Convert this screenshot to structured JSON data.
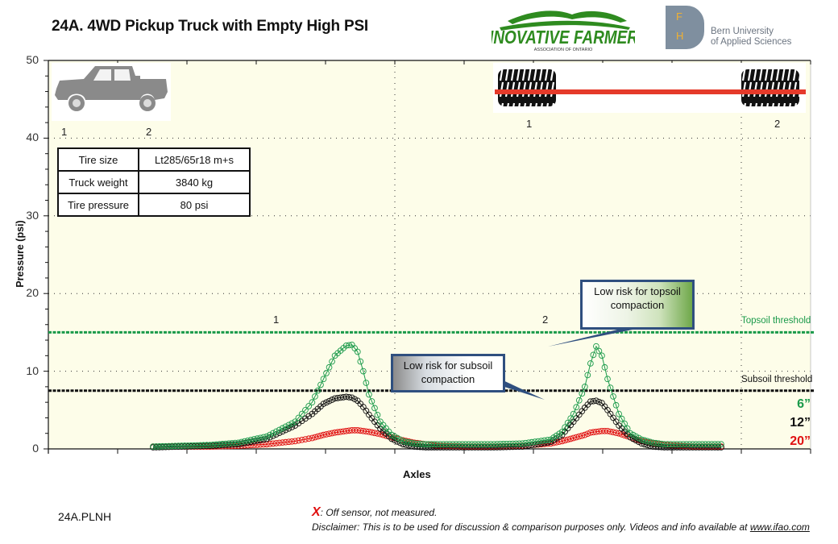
{
  "header": {
    "title": "24A. 4WD Pickup Truck with Empty High PSI",
    "logo_left": {
      "name": "INNOVATIVE FARMERS",
      "subtitle": "ASSOCIATION OF ONTARIO",
      "color": "#2e8b1f"
    },
    "logo_right": {
      "letters": [
        "F",
        "H"
      ],
      "line1": "Bern University",
      "line2": "of Applied Sciences",
      "block_color": "#7f8f9f",
      "letter_color": "#f0b030"
    }
  },
  "vehicle_info": {
    "rows": [
      {
        "label": "Tire size",
        "value": "Lt285/65r18 m+s"
      },
      {
        "label": "Truck weight",
        "value": "3840 kg"
      },
      {
        "label": "Tire pressure",
        "value": "80 psi"
      }
    ]
  },
  "truck_icon": {
    "name": "pickup-truck-icon",
    "axle_labels": [
      "1",
      "2"
    ],
    "color": "#8a8a8a"
  },
  "tire_diagram": {
    "axle_labels": [
      "1",
      "2"
    ],
    "axle_color": "#e53a2a"
  },
  "annotations": {
    "topsoil_callout": "Low risk for topsoil compaction",
    "subsoil_callout": "Low risk for subsoil compaction",
    "topsoil_threshold_label": "Topsoil threshold",
    "subsoil_threshold_label": "Subsoil threshold",
    "peak_labels": [
      "1",
      "2"
    ]
  },
  "legend": [
    {
      "label": "6”",
      "color": "#1a9a4a"
    },
    {
      "label": "12”",
      "color": "#111111"
    },
    {
      "label": "20”",
      "color": "#e01010"
    }
  ],
  "footer": {
    "id": "24A.PLNH",
    "off_sensor_mark": "X",
    "off_sensor_text": ": Off sensor, not measured.",
    "disclaimer": "Disclaimer: This is to be used for discussion & comparison purposes only. Videos and info available at ",
    "link": "www.ifao.com"
  },
  "chart_data": {
    "type": "line",
    "title": "24A. 4WD Pickup Truck with Empty High PSI",
    "xlabel": "Axles",
    "ylabel": "Pressure (psi)",
    "ylim": [
      0,
      50
    ],
    "yticks": [
      0,
      10,
      20,
      30,
      40,
      50
    ],
    "grid": true,
    "legend_position": "right-bottom",
    "thresholds": [
      {
        "name": "Topsoil threshold",
        "value": 15,
        "color": "#1a9a4a"
      },
      {
        "name": "Subsoil threshold",
        "value": 7.5,
        "color": "#111111"
      }
    ],
    "x": [
      0,
      5,
      10,
      15,
      20,
      25,
      28,
      30,
      32,
      34,
      35,
      36,
      37,
      38,
      40,
      42,
      44,
      46,
      48,
      50,
      55,
      60,
      65,
      70,
      72,
      74,
      76,
      77,
      78,
      79,
      80,
      82,
      84,
      86,
      88,
      90,
      95,
      100
    ],
    "series": [
      {
        "name": "6”",
        "color": "#1a9a4a",
        "values": [
          0.3,
          0.4,
          0.5,
          0.8,
          1.6,
          3.5,
          6.0,
          9.0,
          12.0,
          13.3,
          13.4,
          12.5,
          10.0,
          7.0,
          3.5,
          1.8,
          1.0,
          0.7,
          0.6,
          0.6,
          0.6,
          0.6,
          0.7,
          1.2,
          2.2,
          4.5,
          8.0,
          11.0,
          13.2,
          12.0,
          9.0,
          4.5,
          2.0,
          1.2,
          0.8,
          0.6,
          0.6,
          0.6
        ]
      },
      {
        "name": "12”",
        "color": "#111111",
        "values": [
          0.2,
          0.3,
          0.4,
          0.6,
          1.3,
          3.0,
          4.5,
          5.8,
          6.5,
          6.7,
          6.6,
          6.2,
          5.4,
          4.4,
          2.6,
          1.3,
          0.6,
          0.3,
          0.2,
          0.2,
          0.2,
          0.2,
          0.3,
          0.9,
          1.8,
          3.5,
          5.3,
          6.1,
          6.2,
          5.9,
          5.0,
          3.0,
          1.5,
          0.7,
          0.3,
          0.2,
          0.2,
          0.2
        ]
      },
      {
        "name": "20”",
        "color": "#e01010",
        "values": [
          0.3,
          0.3,
          0.3,
          0.4,
          0.6,
          1.0,
          1.4,
          1.8,
          2.1,
          2.3,
          2.4,
          2.4,
          2.3,
          2.2,
          1.9,
          1.5,
          1.1,
          0.8,
          0.6,
          0.4,
          0.3,
          0.3,
          0.4,
          0.7,
          1.0,
          1.4,
          1.8,
          2.1,
          2.2,
          2.3,
          2.3,
          2.0,
          1.5,
          1.0,
          0.7,
          0.5,
          0.3,
          0.3
        ]
      }
    ],
    "peaks": [
      {
        "axle": "1",
        "x": 35,
        "top_6in": 13.4,
        "top_12in": 6.7,
        "top_20in": 2.4
      },
      {
        "axle": "2",
        "x": 78,
        "top_6in": 13.2,
        "top_12in": 6.2,
        "top_20in": 2.3
      }
    ]
  }
}
